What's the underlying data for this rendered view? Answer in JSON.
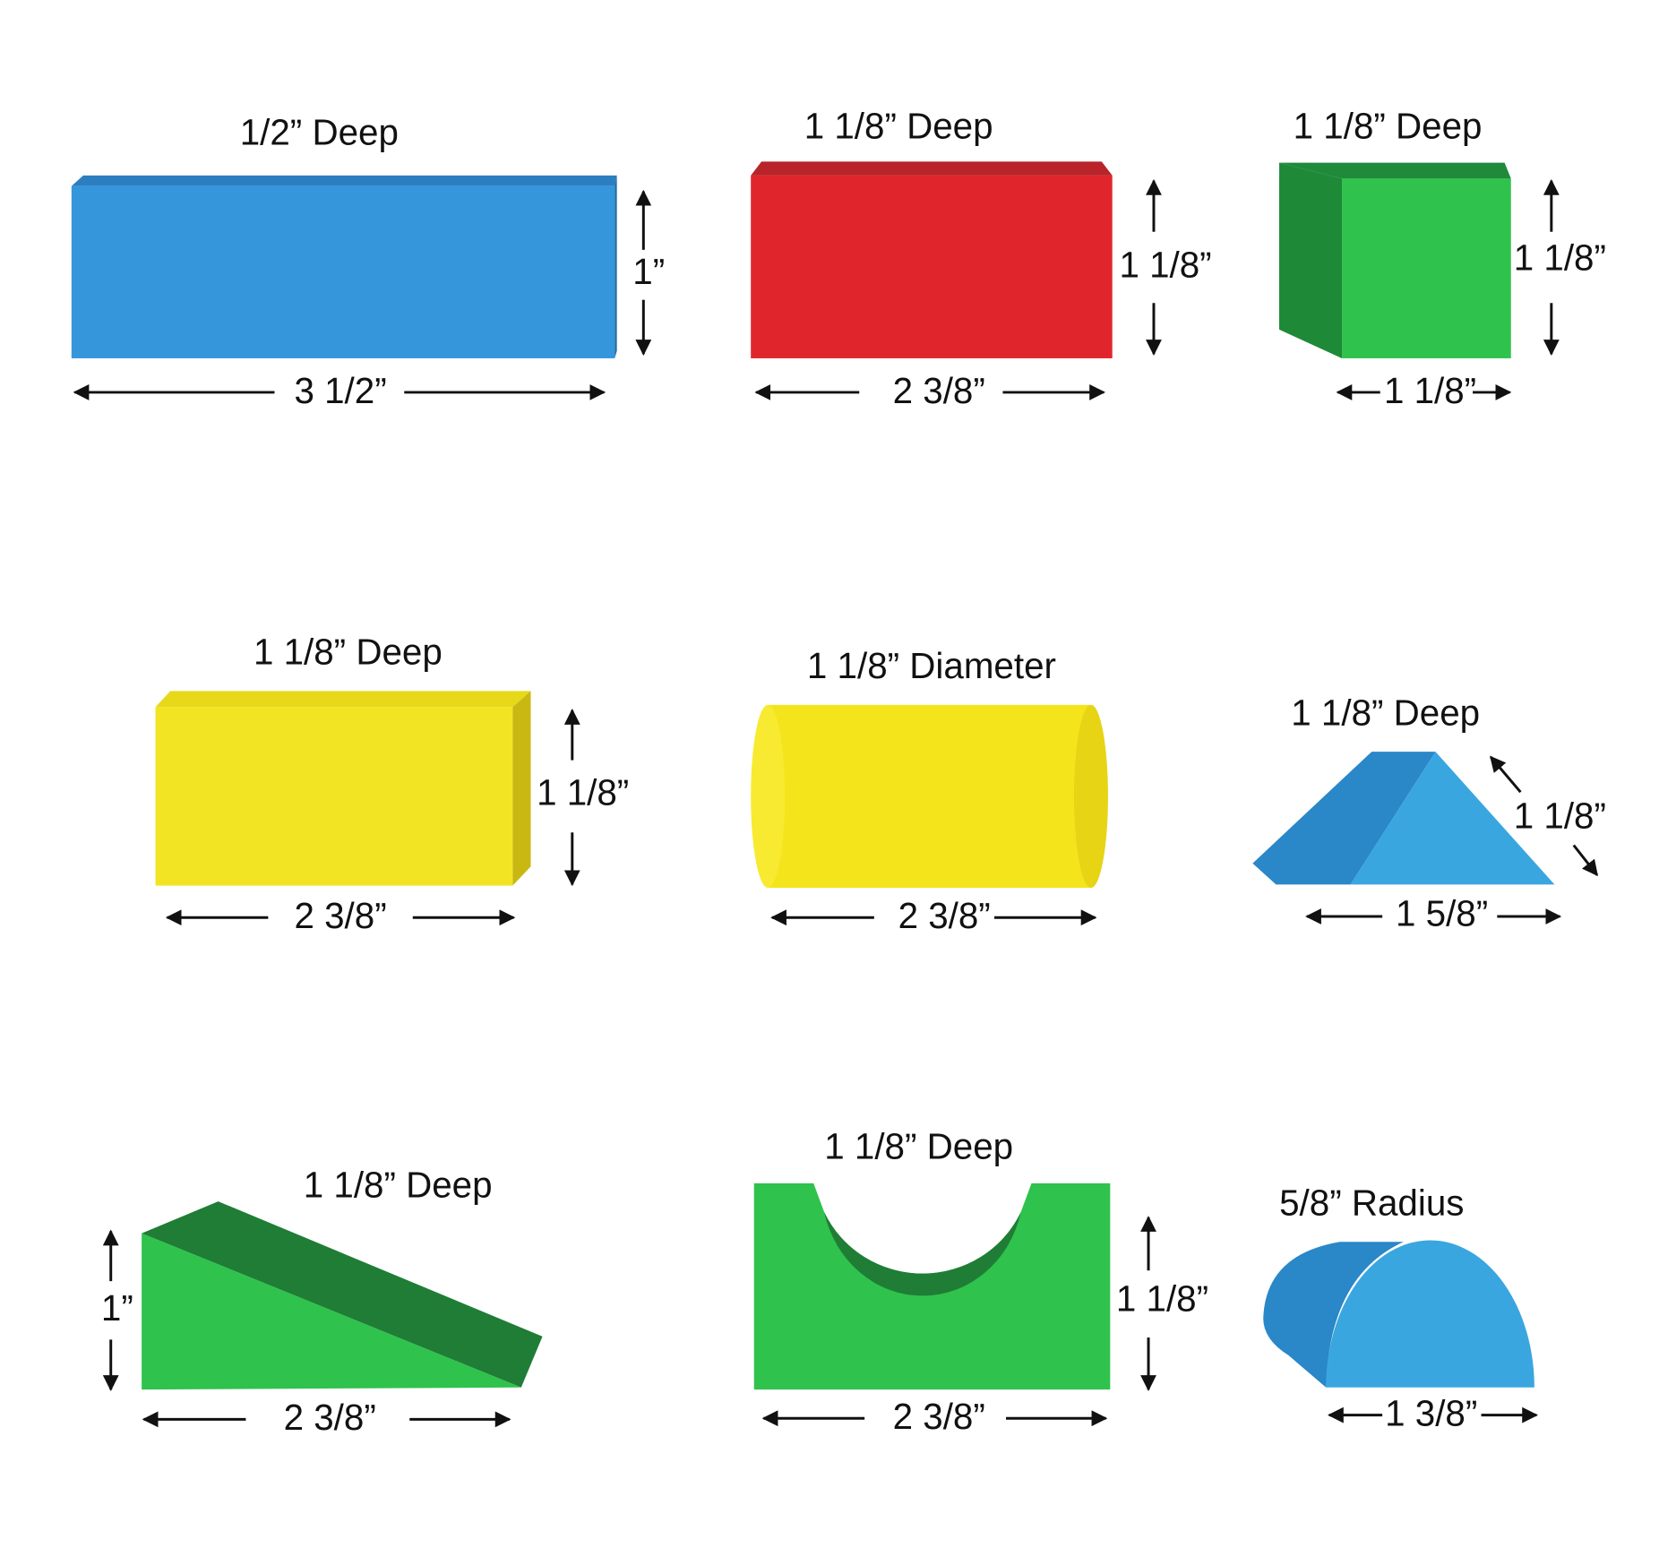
{
  "blocks": [
    {
      "depth": "1/2” Deep",
      "width": "3 1/2”",
      "height": "1”"
    },
    {
      "depth": "1 1/8” Deep",
      "width": "2 3/8”",
      "height": "1 1/8”"
    },
    {
      "depth": "1 1/8” Deep",
      "width": "1 1/8”",
      "height": "1 1/8”"
    },
    {
      "depth": "1 1/8” Deep",
      "width": "2 3/8”",
      "height": "1 1/8”"
    },
    {
      "depth": "1 1/8” Diameter",
      "width": "2 3/8”"
    },
    {
      "depth": "1 1/8” Deep",
      "width": "1 5/8”",
      "height": "1 1/8”"
    },
    {
      "depth": "1 1/8” Deep",
      "width": "2 3/8”",
      "height": "1”"
    },
    {
      "depth": "1 1/8” Deep",
      "width": "2 3/8”",
      "height": "1 1/8”"
    },
    {
      "depth": "5/8” Radius",
      "width": "1 3/8”"
    }
  ]
}
